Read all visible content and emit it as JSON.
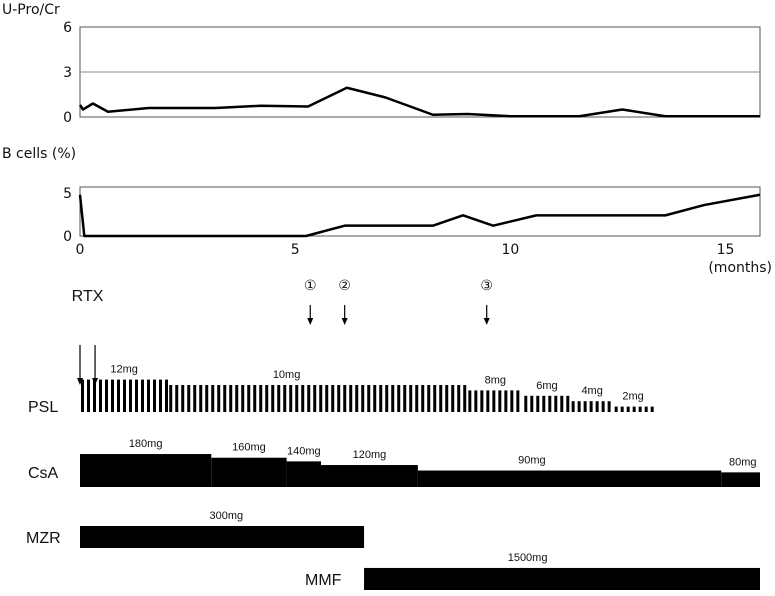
{
  "chart_data": [
    {
      "type": "line",
      "ylabel": "U-Pro/Cr",
      "ylim": [
        0,
        6
      ],
      "yticks": [
        "0",
        "3",
        "6"
      ],
      "gridline_at": 3,
      "xlim": [
        0,
        15.8
      ],
      "points": [
        [
          0,
          0.8
        ],
        [
          0.07,
          0.5
        ],
        [
          0.3,
          0.9
        ],
        [
          0.65,
          0.35
        ],
        [
          1.6,
          0.6
        ],
        [
          3.15,
          0.6
        ],
        [
          4.2,
          0.75
        ],
        [
          5.3,
          0.7
        ],
        [
          6.2,
          1.95
        ],
        [
          7.1,
          1.3
        ],
        [
          8.2,
          0.15
        ],
        [
          9.0,
          0.2
        ],
        [
          10.0,
          0.05
        ],
        [
          11.6,
          0.05
        ],
        [
          12.6,
          0.5
        ],
        [
          13.6,
          0.05
        ],
        [
          15.8,
          0.05
        ]
      ]
    },
    {
      "type": "line",
      "ylabel": "B cells (%)",
      "ylim": [
        0,
        5.7
      ],
      "yticks": [
        "0",
        "5"
      ],
      "xlim": [
        0,
        15.8
      ],
      "xticks": [
        "0",
        "5",
        "10",
        "15"
      ],
      "xunit": "(months)",
      "points": [
        [
          0,
          4.8
        ],
        [
          0.1,
          0
        ],
        [
          5.25,
          0
        ],
        [
          6.15,
          1.2
        ],
        [
          8.2,
          1.2
        ],
        [
          8.9,
          2.4
        ],
        [
          9.6,
          1.2
        ],
        [
          10.6,
          2.4
        ],
        [
          13.6,
          2.4
        ],
        [
          14.5,
          3.6
        ],
        [
          15.8,
          4.8
        ]
      ]
    },
    {
      "type": "timeline",
      "events": [
        {
          "label": "RTX",
          "months": [
            0,
            0.35
          ]
        },
        {
          "label": "①",
          "months": [
            5.35
          ]
        },
        {
          "label": "②",
          "months": [
            6.15
          ]
        },
        {
          "label": "③",
          "months": [
            9.45
          ]
        }
      ],
      "drugs": [
        {
          "name": "PSL",
          "style": "daily-bars",
          "segments": [
            {
              "dose": "12mg",
              "value": 12,
              "start": 0,
              "end": 2.05
            },
            {
              "dose": "10mg",
              "value": 10,
              "start": 2.05,
              "end": 9.0
            },
            {
              "dose": "8mg",
              "value": 8,
              "start": 9.0,
              "end": 10.3
            },
            {
              "dose": "6mg",
              "value": 6,
              "start": 10.3,
              "end": 11.4
            },
            {
              "dose": "4mg",
              "value": 4,
              "start": 11.4,
              "end": 12.4
            },
            {
              "dose": "2mg",
              "value": 2,
              "start": 12.4,
              "end": 13.3
            }
          ]
        },
        {
          "name": "CsA",
          "style": "solid",
          "segments": [
            {
              "dose": "180mg",
              "value": 180,
              "start": 0,
              "end": 3.05
            },
            {
              "dose": "160mg",
              "value": 160,
              "start": 3.05,
              "end": 4.8
            },
            {
              "dose": "140mg",
              "value": 140,
              "start": 4.8,
              "end": 5.6
            },
            {
              "dose": "120mg",
              "value": 120,
              "start": 5.6,
              "end": 7.85
            },
            {
              "dose": "90mg",
              "value": 90,
              "start": 7.85,
              "end": 14.9
            },
            {
              "dose": "80mg",
              "value": 80,
              "start": 14.9,
              "end": 15.8
            }
          ]
        },
        {
          "name": "MZR",
          "style": "solid",
          "segments": [
            {
              "dose": "300mg",
              "value": 300,
              "start": 0,
              "end": 6.6
            }
          ]
        },
        {
          "name": "MMF",
          "style": "solid",
          "segments": [
            {
              "dose": "1500mg",
              "value": 1500,
              "start": 6.6,
              "end": 15.8
            }
          ]
        }
      ]
    }
  ]
}
